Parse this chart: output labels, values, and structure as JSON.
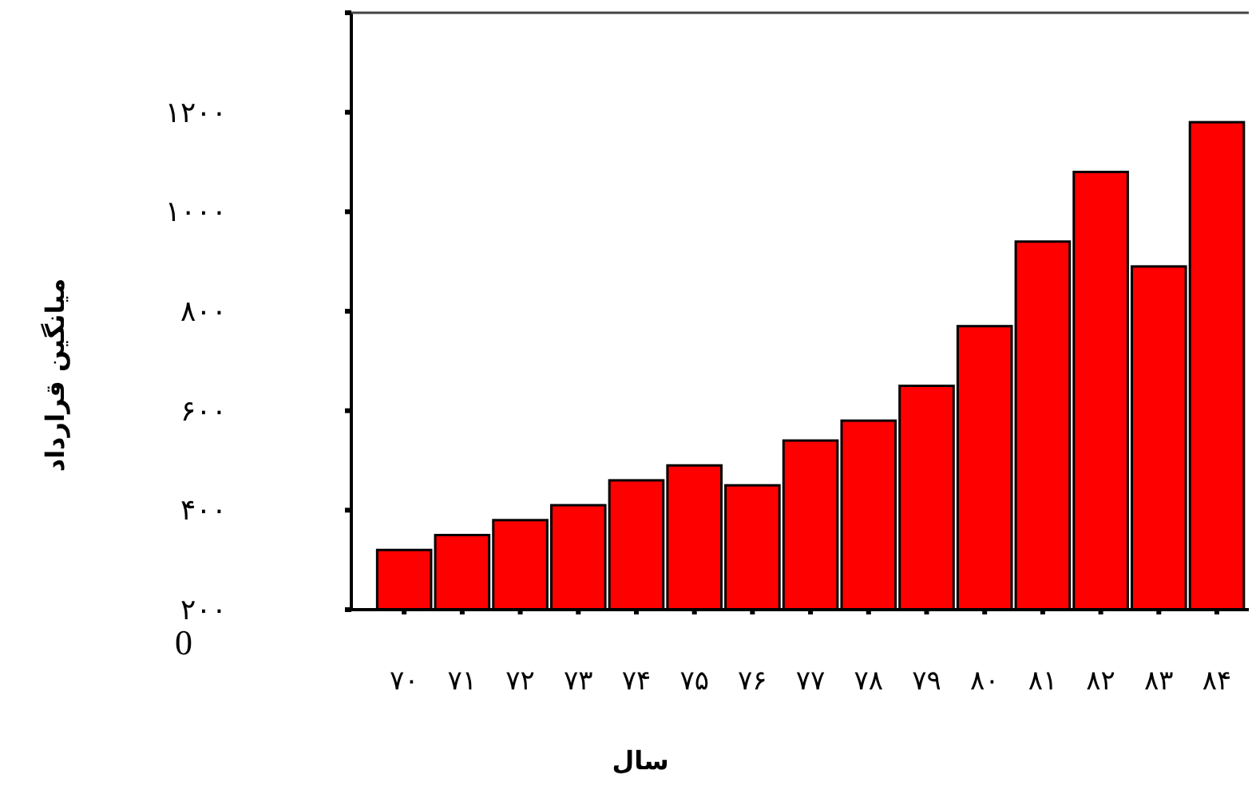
{
  "chart_data": {
    "type": "bar",
    "xlabel": "سال",
    "ylabel": "میانگین قرارداد",
    "categories": [
      "۷۰",
      "۷۱",
      "۷۲",
      "۷۳",
      "۷۴",
      "۷۵",
      "۷۶",
      "۷۷",
      "۷۸",
      "۷۹",
      "۸۰",
      "۸۱",
      "۸۲",
      "۸۳",
      "۸۴"
    ],
    "values": [
      320,
      350,
      380,
      410,
      460,
      490,
      450,
      540,
      580,
      650,
      770,
      940,
      1080,
      890,
      1180
    ],
    "color": "#ff0000",
    "ylim": [
      200,
      1400
    ],
    "yticks": [
      {
        "value": 200,
        "label": "۲۰۰"
      },
      {
        "value": 400,
        "label": "۴۰۰"
      },
      {
        "value": 600,
        "label": "۶۰۰"
      },
      {
        "value": 800,
        "label": "۸۰۰"
      },
      {
        "value": 1000,
        "label": "۱۰۰۰"
      },
      {
        "value": 1200,
        "label": "۱۲۰۰"
      },
      {
        "value": 1400,
        "label": null
      }
    ],
    "annotations": [
      "0"
    ]
  }
}
